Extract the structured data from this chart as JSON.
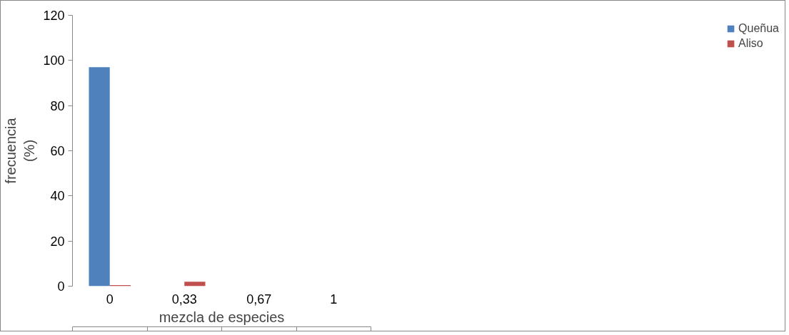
{
  "chart_data": {
    "type": "bar",
    "xlabel": "mezcla de especies",
    "ylabel": "frecuencia\n(%)",
    "categories": [
      "0",
      "0,33",
      "0,67",
      "1"
    ],
    "series": [
      {
        "name": "Queñua",
        "color": "#4f81bd",
        "values": [
          97,
          0,
          0,
          0
        ]
      },
      {
        "name": "Aliso",
        "color": "#c0504d",
        "values": [
          0.5,
          2,
          0,
          0
        ]
      }
    ],
    "ylim": [
      0,
      120
    ],
    "yticks": [
      0,
      20,
      40,
      60,
      80,
      100,
      120
    ],
    "grid": false,
    "legend": "right"
  }
}
